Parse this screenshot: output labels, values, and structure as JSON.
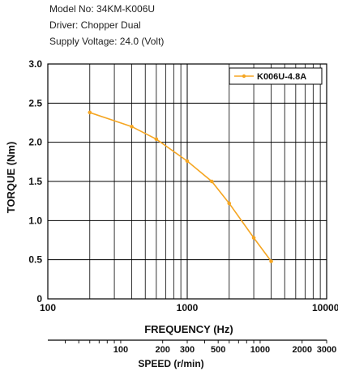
{
  "header": {
    "model": "Model No: 34KM-K006U",
    "driver": "Driver: Chopper Dual",
    "voltage": "Supply Voltage: 24.0 (Volt)"
  },
  "colors": {
    "series": "#F5A623",
    "grid": "#000000"
  },
  "chart_data": {
    "type": "line",
    "xlabel": "FREQUENCY (Hz)",
    "ylabel": "TORQUE (Nm)",
    "x_scale": "log",
    "xlim": [
      100,
      10000
    ],
    "ylim": [
      0,
      3.0
    ],
    "grid": true,
    "legend_position": "top-right",
    "x_ticks": [
      "100",
      "1000",
      "10000"
    ],
    "y_ticks": [
      "0",
      "0.5",
      "1.0",
      "1.5",
      "2.0",
      "2.5",
      "3.0"
    ],
    "series": [
      {
        "name": "K006U-4.8A",
        "x": [
          200,
          400,
          600,
          1000,
          1500,
          2000,
          3000,
          4000
        ],
        "y": [
          2.38,
          2.2,
          2.04,
          1.76,
          1.5,
          1.22,
          0.78,
          0.48
        ]
      }
    ],
    "secondary_axis": {
      "xlabel": "SPEED (r/min)",
      "ticks": [
        "100",
        "200",
        "300",
        "500",
        "1000",
        "2000",
        "3000"
      ],
      "tick_values": [
        100,
        200,
        300,
        500,
        1000,
        2000,
        3000
      ],
      "range": [
        30,
        3000
      ]
    }
  }
}
